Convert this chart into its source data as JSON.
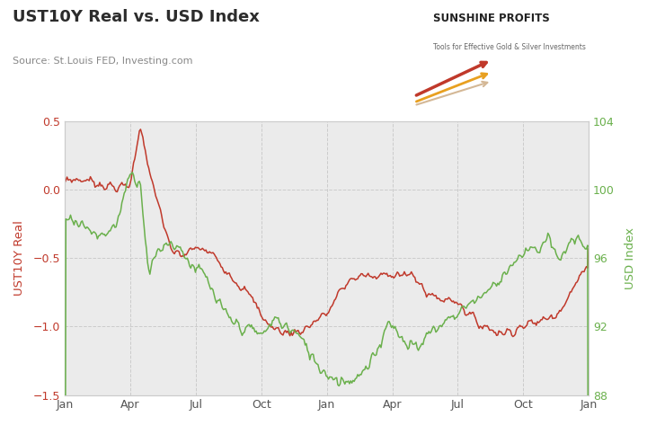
{
  "title": "UST10Y Real vs. USD Index",
  "subtitle": "Source: St.Louis FED, Investing.com",
  "ylabel_left": "UST10Y Real",
  "ylabel_right": "USD Index",
  "left_color": "#c0392b",
  "right_color": "#6ab04c",
  "ylim_left": [
    -1.5,
    0.5
  ],
  "ylim_right": [
    88,
    104
  ],
  "yticks_left": [
    -1.5,
    -1.0,
    -0.5,
    0.0,
    0.5
  ],
  "yticks_right": [
    88,
    92,
    96,
    100,
    104
  ],
  "background_color": "#ebebeb",
  "title_color": "#2c2c2c",
  "subtitle_color": "#888888",
  "xtick_labels": [
    "Jan",
    "Apr",
    "Jul",
    "Oct",
    "Jan",
    "Apr",
    "Jul",
    "Oct",
    "Jan"
  ],
  "n_points": 450
}
